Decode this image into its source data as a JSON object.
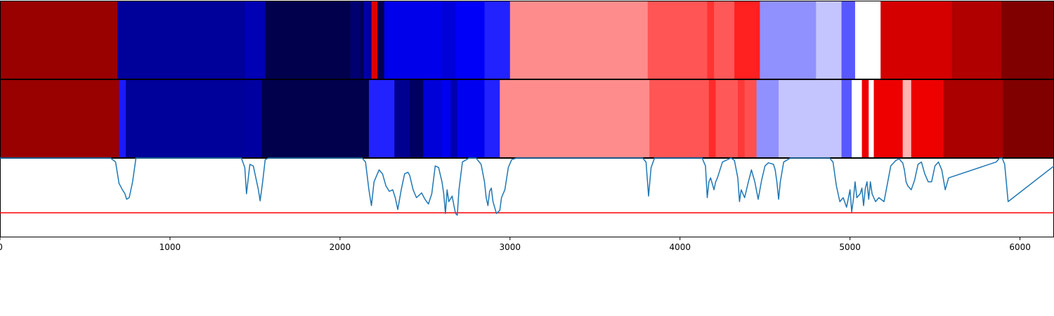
{
  "chart_data": {
    "type": "heatmap",
    "title": "",
    "xlabel": "",
    "ylabel": "",
    "xlim": [
      0,
      6200
    ],
    "xticks": [
      0,
      1000,
      2000,
      3000,
      4000,
      5000,
      6000
    ],
    "xtick_labels": [
      "0",
      "1000",
      "2000",
      "3000",
      "4000",
      "5000",
      "6000"
    ],
    "colormap": "seismic",
    "strips": [
      {
        "segments": [
          {
            "start": 0,
            "end": 690,
            "color": "#990000"
          },
          {
            "start": 690,
            "end": 1440,
            "color": "#00009a"
          },
          {
            "start": 1440,
            "end": 1560,
            "color": "#0000b4"
          },
          {
            "start": 1560,
            "end": 2060,
            "color": "#00004c"
          },
          {
            "start": 2060,
            "end": 2120,
            "color": "#000070"
          },
          {
            "start": 2120,
            "end": 2140,
            "color": "#000055"
          },
          {
            "start": 2140,
            "end": 2170,
            "color": "#0000a8"
          },
          {
            "start": 2170,
            "end": 2185,
            "color": "#000090"
          },
          {
            "start": 2185,
            "end": 2220,
            "color": "#dd0000"
          },
          {
            "start": 2220,
            "end": 2260,
            "color": "#000050"
          },
          {
            "start": 2260,
            "end": 2600,
            "color": "#0000ea"
          },
          {
            "start": 2600,
            "end": 2680,
            "color": "#0000d8"
          },
          {
            "start": 2680,
            "end": 2850,
            "color": "#0000f8"
          },
          {
            "start": 2850,
            "end": 3000,
            "color": "#2222ff"
          },
          {
            "start": 3000,
            "end": 3810,
            "color": "#ff8c8c"
          },
          {
            "start": 3810,
            "end": 4160,
            "color": "#ff5555"
          },
          {
            "start": 4160,
            "end": 4200,
            "color": "#ff3333"
          },
          {
            "start": 4200,
            "end": 4320,
            "color": "#ff5858"
          },
          {
            "start": 4320,
            "end": 4470,
            "color": "#ff2020"
          },
          {
            "start": 4470,
            "end": 4800,
            "color": "#9090ff"
          },
          {
            "start": 4800,
            "end": 4950,
            "color": "#c4c4ff"
          },
          {
            "start": 4950,
            "end": 5030,
            "color": "#5858ff"
          },
          {
            "start": 5030,
            "end": 5180,
            "color": "#ffffff"
          },
          {
            "start": 5180,
            "end": 5600,
            "color": "#d40000"
          },
          {
            "start": 5600,
            "end": 5890,
            "color": "#b00000"
          },
          {
            "start": 5890,
            "end": 6200,
            "color": "#800000"
          }
        ]
      },
      {
        "segments": [
          {
            "start": 0,
            "end": 700,
            "color": "#990000"
          },
          {
            "start": 700,
            "end": 740,
            "color": "#1a1aff"
          },
          {
            "start": 740,
            "end": 1440,
            "color": "#00009a"
          },
          {
            "start": 1440,
            "end": 1540,
            "color": "#0000a0"
          },
          {
            "start": 1540,
            "end": 2170,
            "color": "#00004c"
          },
          {
            "start": 2170,
            "end": 2320,
            "color": "#2222ff"
          },
          {
            "start": 2320,
            "end": 2410,
            "color": "#000090"
          },
          {
            "start": 2410,
            "end": 2490,
            "color": "#000060"
          },
          {
            "start": 2490,
            "end": 2600,
            "color": "#0000d8"
          },
          {
            "start": 2600,
            "end": 2650,
            "color": "#0000f0"
          },
          {
            "start": 2650,
            "end": 2690,
            "color": "#0000b0"
          },
          {
            "start": 2690,
            "end": 2850,
            "color": "#0000f0"
          },
          {
            "start": 2850,
            "end": 2940,
            "color": "#2222ff"
          },
          {
            "start": 2940,
            "end": 3820,
            "color": "#ff8c8c"
          },
          {
            "start": 3820,
            "end": 4170,
            "color": "#ff5555"
          },
          {
            "start": 4170,
            "end": 4210,
            "color": "#ff2a2a"
          },
          {
            "start": 4210,
            "end": 4340,
            "color": "#ff5858"
          },
          {
            "start": 4340,
            "end": 4380,
            "color": "#ff3838"
          },
          {
            "start": 4380,
            "end": 4450,
            "color": "#ff5050"
          },
          {
            "start": 4450,
            "end": 4580,
            "color": "#9090ff"
          },
          {
            "start": 4580,
            "end": 4950,
            "color": "#c4c4ff"
          },
          {
            "start": 4950,
            "end": 5010,
            "color": "#5858ff"
          },
          {
            "start": 5010,
            "end": 5070,
            "color": "#ffffff"
          },
          {
            "start": 5070,
            "end": 5110,
            "color": "#ee0000"
          },
          {
            "start": 5110,
            "end": 5140,
            "color": "#ffffff"
          },
          {
            "start": 5140,
            "end": 5310,
            "color": "#ee0000"
          },
          {
            "start": 5310,
            "end": 5360,
            "color": "#ffb4b4"
          },
          {
            "start": 5360,
            "end": 5550,
            "color": "#ee0000"
          },
          {
            "start": 5550,
            "end": 5900,
            "color": "#aa0000"
          },
          {
            "start": 5900,
            "end": 6200,
            "color": "#800000"
          }
        ]
      }
    ],
    "line_panel": {
      "ylim": [
        0,
        1
      ],
      "threshold": 0.31,
      "threshold_color": "#ff0000",
      "line_color": "#1f77b4",
      "x": [
        0,
        650,
        680,
        700,
        720,
        735,
        745,
        760,
        780,
        800,
        1420,
        1440,
        1450,
        1470,
        1490,
        1520,
        1530,
        1545,
        1560,
        1580,
        2130,
        2150,
        2170,
        2185,
        2200,
        2230,
        2250,
        2270,
        2290,
        2310,
        2325,
        2340,
        2360,
        2380,
        2400,
        2410,
        2430,
        2450,
        2480,
        2500,
        2520,
        2540,
        2560,
        2580,
        2600,
        2610,
        2620,
        2630,
        2640,
        2660,
        2670,
        2680,
        2690,
        2700,
        2720,
        2760,
        2800,
        2830,
        2850,
        2860,
        2870,
        2880,
        2890,
        2900,
        2920,
        2940,
        2950,
        2970,
        2990,
        3010,
        3040,
        3080,
        3780,
        3800,
        3815,
        3830,
        3850,
        4130,
        4150,
        4160,
        4170,
        4180,
        4200,
        4210,
        4220,
        4250,
        4300,
        4320,
        4340,
        4350,
        4360,
        4370,
        4380,
        4400,
        4420,
        4440,
        4460,
        4480,
        4500,
        4520,
        4550,
        4560,
        4570,
        4580,
        4590,
        4610,
        4650,
        4880,
        4900,
        4920,
        4940,
        4960,
        4980,
        5000,
        5010,
        5020,
        5030,
        5040,
        5060,
        5070,
        5080,
        5090,
        5100,
        5110,
        5120,
        5130,
        5140,
        5150,
        5170,
        5200,
        5240,
        5270,
        5290,
        5300,
        5310,
        5320,
        5330,
        5340,
        5360,
        5380,
        5400,
        5420,
        5440,
        5460,
        5480,
        5500,
        5520,
        5540,
        5560,
        5580,
        5860,
        5880,
        5895,
        5910,
        5930,
        6200
      ],
      "y": [
        1.0,
        1.0,
        0.95,
        0.68,
        0.6,
        0.55,
        0.48,
        0.5,
        0.7,
        1.0,
        1.0,
        0.88,
        0.55,
        0.92,
        0.9,
        0.6,
        0.46,
        0.7,
        0.98,
        1.0,
        1.0,
        0.95,
        0.6,
        0.4,
        0.7,
        0.85,
        0.8,
        0.65,
        0.58,
        0.6,
        0.5,
        0.35,
        0.6,
        0.8,
        0.82,
        0.78,
        0.6,
        0.5,
        0.56,
        0.48,
        0.42,
        0.55,
        0.9,
        0.88,
        0.7,
        0.55,
        0.3,
        0.6,
        0.45,
        0.52,
        0.4,
        0.3,
        0.28,
        0.6,
        0.95,
        1.0,
        1.0,
        0.92,
        0.7,
        0.5,
        0.4,
        0.58,
        0.62,
        0.45,
        0.3,
        0.34,
        0.5,
        0.6,
        0.88,
        0.98,
        1.0,
        1.0,
        1.0,
        0.95,
        0.52,
        0.88,
        1.0,
        1.0,
        0.9,
        0.5,
        0.7,
        0.75,
        0.6,
        0.7,
        0.75,
        0.95,
        1.0,
        0.97,
        0.75,
        0.45,
        0.6,
        0.55,
        0.5,
        0.68,
        0.85,
        0.7,
        0.48,
        0.72,
        0.9,
        0.94,
        0.92,
        0.85,
        0.7,
        0.48,
        0.7,
        0.95,
        1.0,
        1.0,
        0.95,
        0.65,
        0.45,
        0.5,
        0.38,
        0.6,
        0.32,
        0.48,
        0.7,
        0.5,
        0.55,
        0.62,
        0.4,
        0.62,
        0.7,
        0.48,
        0.7,
        0.55,
        0.5,
        0.45,
        0.5,
        0.45,
        0.9,
        0.97,
        0.99,
        0.96,
        0.94,
        0.85,
        0.7,
        0.65,
        0.6,
        0.72,
        0.92,
        0.95,
        0.8,
        0.7,
        0.7,
        0.9,
        0.95,
        0.85,
        0.6,
        0.75,
        0.95,
        1.0,
        1.0,
        0.92,
        0.45,
        0.9,
        1.0,
        1.0
      ]
    }
  }
}
